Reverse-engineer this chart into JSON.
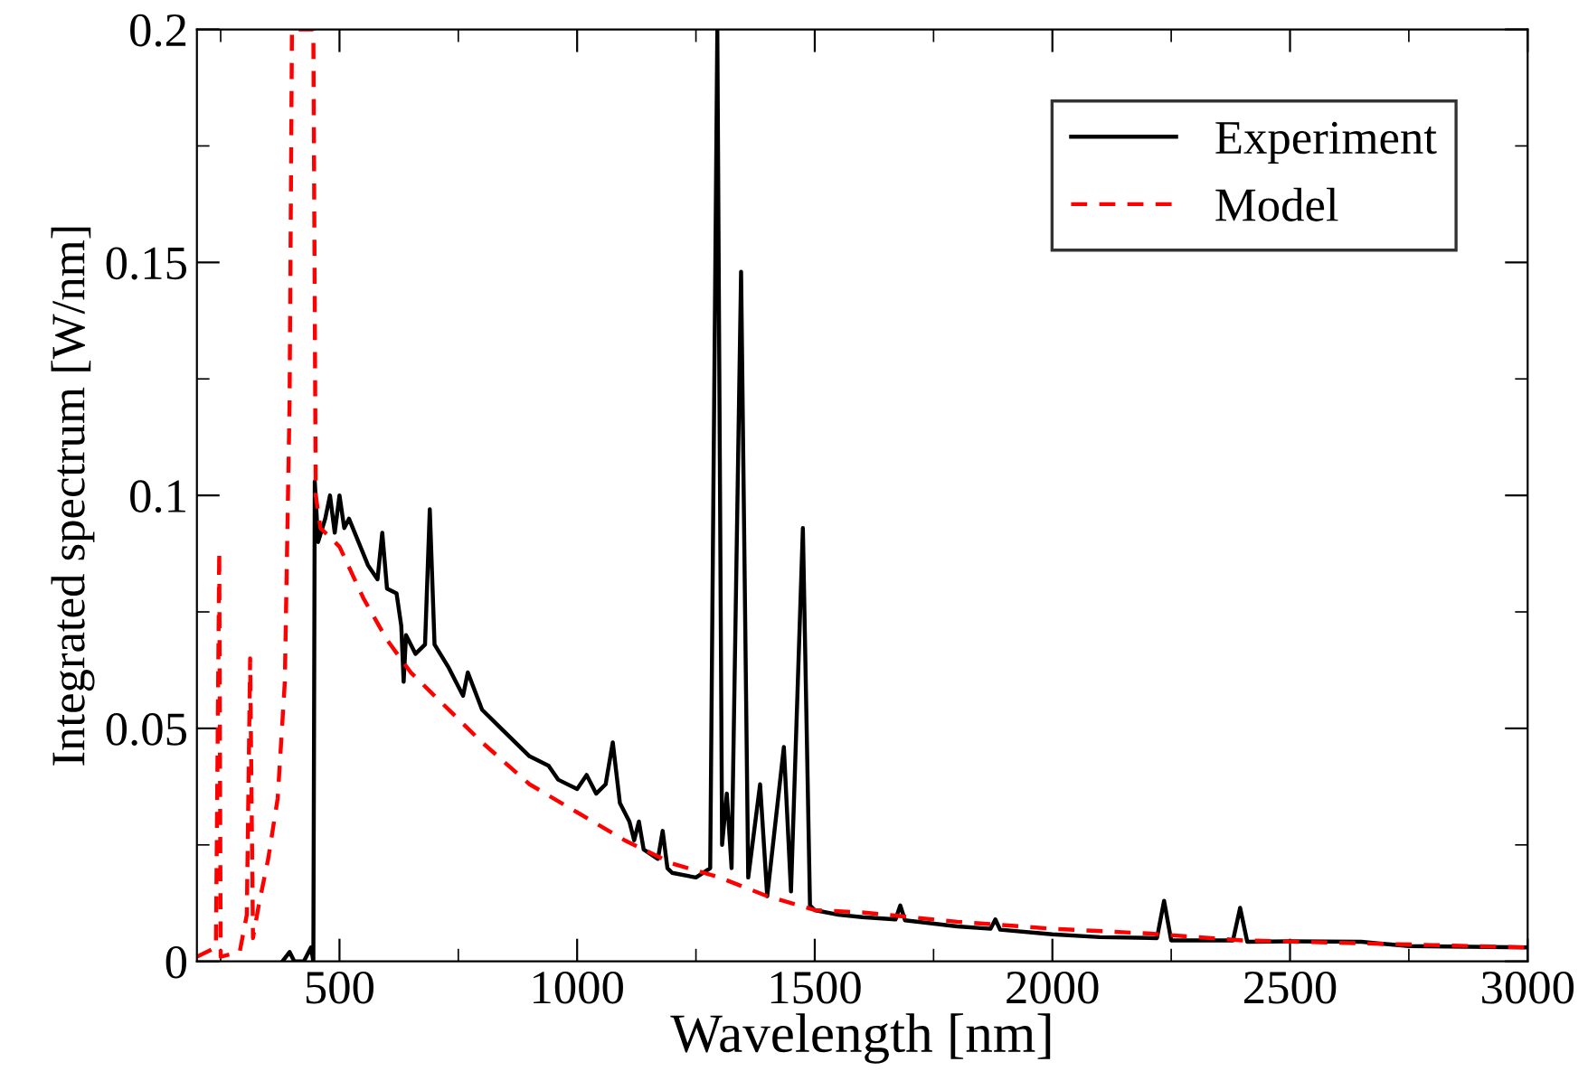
{
  "chart_data": {
    "type": "line",
    "xlabel": "Wavelength [nm]",
    "ylabel": "Integrated spectrum [W/nm]",
    "xlim": [
      200,
      3000
    ],
    "ylim": [
      0,
      0.2
    ],
    "xticks": [
      {
        "value": 500,
        "label": "500"
      },
      {
        "value": 1000,
        "label": "1000"
      },
      {
        "value": 1500,
        "label": "1500"
      },
      {
        "value": 2000,
        "label": "2000"
      },
      {
        "value": 2500,
        "label": "2500"
      },
      {
        "value": 3000,
        "label": "3000"
      }
    ],
    "yticks": [
      0,
      0.05,
      0.1,
      0.15,
      0.2
    ],
    "legend": "top right",
    "grid": false,
    "marker": "none",
    "series": [
      {
        "name": "Experiment",
        "color": "#000000",
        "line_style": "solid",
        "x": [
          380,
          395,
          405,
          425,
          440,
          445,
          448,
          455,
          470,
          480,
          490,
          500,
          510,
          520,
          540,
          560,
          580,
          590,
          600,
          620,
          630,
          635,
          640,
          660,
          680,
          690,
          700,
          730,
          760,
          770,
          800,
          850,
          900,
          940,
          960,
          1000,
          1020,
          1040,
          1060,
          1075,
          1090,
          1110,
          1120,
          1130,
          1140,
          1170,
          1180,
          1190,
          1200,
          1250,
          1280,
          1295,
          1305,
          1315,
          1325,
          1345,
          1360,
          1385,
          1400,
          1435,
          1450,
          1475,
          1490,
          1500,
          1550,
          1600,
          1670,
          1680,
          1690,
          1800,
          1870,
          1880,
          1890,
          2000,
          2100,
          2220,
          2235,
          2250,
          2380,
          2395,
          2410,
          2500,
          2650,
          2750,
          3000
        ],
        "values": [
          0,
          0.002,
          0,
          0,
          0.003,
          0,
          0.103,
          0.09,
          0.095,
          0.1,
          0.092,
          0.1,
          0.093,
          0.095,
          0.09,
          0.085,
          0.082,
          0.092,
          0.08,
          0.079,
          0.072,
          0.06,
          0.07,
          0.066,
          0.068,
          0.097,
          0.068,
          0.063,
          0.057,
          0.062,
          0.054,
          0.049,
          0.044,
          0.042,
          0.039,
          0.037,
          0.04,
          0.036,
          0.038,
          0.047,
          0.034,
          0.03,
          0.026,
          0.03,
          0.024,
          0.022,
          0.028,
          0.02,
          0.019,
          0.018,
          0.02,
          0.2,
          0.025,
          0.036,
          0.02,
          0.148,
          0.018,
          0.038,
          0.014,
          0.046,
          0.015,
          0.093,
          0.012,
          0.011,
          0.01,
          0.0095,
          0.009,
          0.012,
          0.0088,
          0.0075,
          0.007,
          0.009,
          0.0068,
          0.0058,
          0.0052,
          0.005,
          0.013,
          0.0045,
          0.0045,
          0.0115,
          0.0042,
          0.0043,
          0.0042,
          0.0033,
          0.003
        ]
      },
      {
        "name": "Model",
        "color": "#ff0000",
        "line_style": "dashed",
        "x": [
          200,
          240,
          247,
          250,
          290,
          305,
          312,
          318,
          330,
          350,
          370,
          385,
          395,
          400,
          445,
          450,
          460,
          500,
          550,
          600,
          650,
          700,
          800,
          900,
          1000,
          1100,
          1200,
          1300,
          1400,
          1500,
          1600,
          1800,
          2000,
          2200,
          2400,
          2600,
          2800,
          3000
        ],
        "values": [
          0.001,
          0.003,
          0.088,
          0.001,
          0.002,
          0.01,
          0.065,
          0.005,
          0.012,
          0.022,
          0.035,
          0.06,
          0.12,
          0.2,
          0.2,
          0.1,
          0.093,
          0.089,
          0.078,
          0.069,
          0.062,
          0.057,
          0.047,
          0.038,
          0.032,
          0.026,
          0.021,
          0.018,
          0.014,
          0.011,
          0.0105,
          0.0085,
          0.007,
          0.006,
          0.0045,
          0.004,
          0.0035,
          0.003
        ]
      }
    ]
  }
}
